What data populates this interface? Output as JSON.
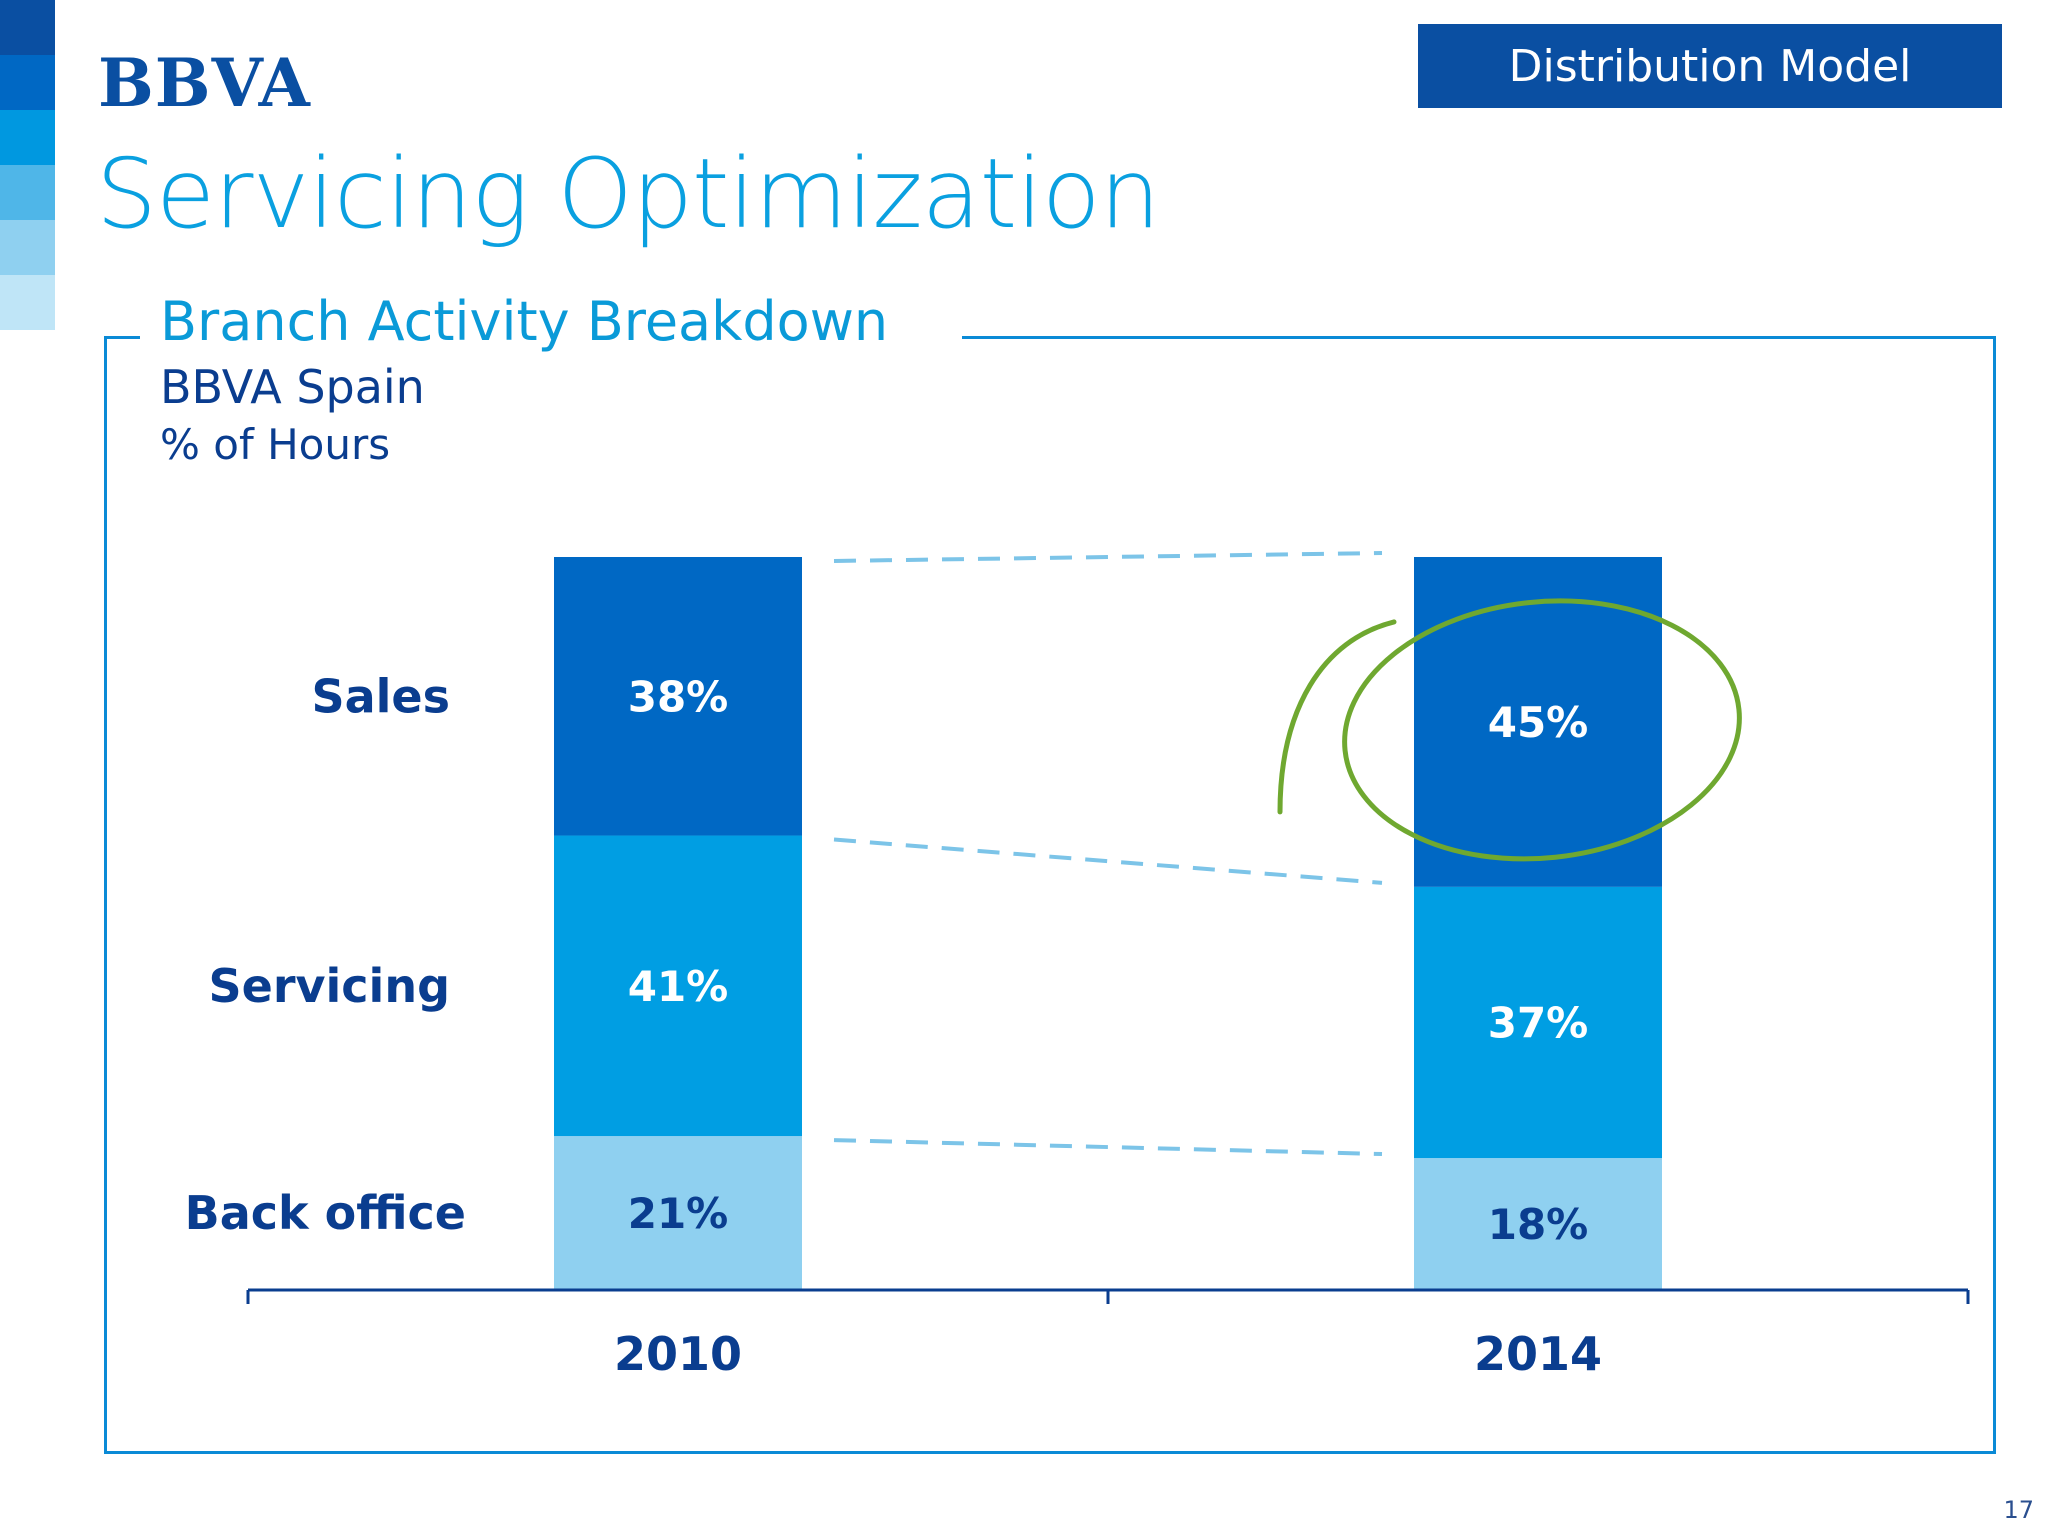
{
  "header": {
    "logo": "BBVA",
    "section_tag": "Distribution Model",
    "page_title": "Servicing Optimization",
    "page_number": "17"
  },
  "colors": {
    "corner_strip": [
      "#0a4fa2",
      "#0068c4",
      "#0098e0",
      "#4fb6e8",
      "#8fd0f0",
      "#bfe5f7"
    ],
    "sales": "#0068c4",
    "servicing": "#009ee3",
    "back_office": "#8fd0f0",
    "label_dark": "#0a3d8f",
    "connector": "#7cc4e8",
    "highlight": "#6fa830"
  },
  "chart_data": {
    "type": "bar",
    "stacked": true,
    "title": "Branch Activity Breakdown",
    "subtitle": "BBVA Spain",
    "unit": "% of Hours",
    "categories": [
      "2010",
      "2014"
    ],
    "series": [
      {
        "name": "Sales",
        "values": [
          38,
          45
        ],
        "labels": [
          "38%",
          "45%"
        ],
        "color": "#0068c4",
        "label_color": "#ffffff"
      },
      {
        "name": "Servicing",
        "values": [
          41,
          37
        ],
        "labels": [
          "41%",
          "37%"
        ],
        "color": "#009ee3",
        "label_color": "#ffffff"
      },
      {
        "name": "Back office",
        "values": [
          21,
          18
        ],
        "labels": [
          "21%",
          "18%"
        ],
        "color": "#8fd0f0",
        "label_color": "#0a3d8f"
      }
    ],
    "ylim": [
      0,
      100
    ],
    "highlight": {
      "category": "2014",
      "series": "Sales"
    },
    "connectors": true
  }
}
